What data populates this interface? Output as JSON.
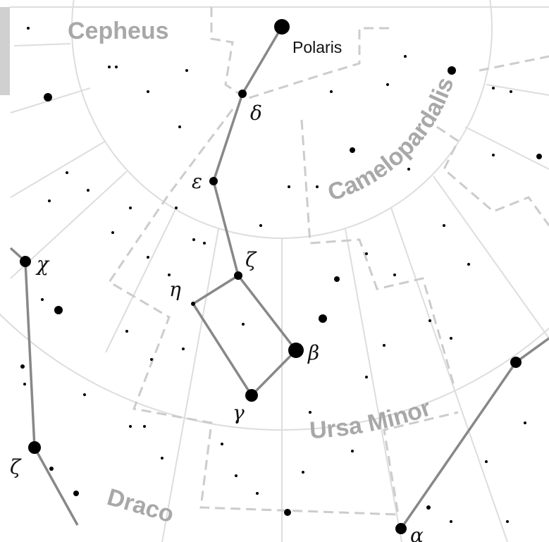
{
  "constellations": {
    "cepheus": "Cepheus",
    "camelopardalis": "Camelopardalis",
    "ursa_minor": "Ursa Minor",
    "draco": "Draco"
  },
  "star_labels": {
    "polaris": "Polaris",
    "delta": "δ",
    "epsilon": "ε",
    "zeta": "ζ",
    "eta": "η",
    "beta": "β",
    "gamma": "γ",
    "chi": "χ",
    "zeta_draco": "ζ",
    "alpha": "α"
  }
}
